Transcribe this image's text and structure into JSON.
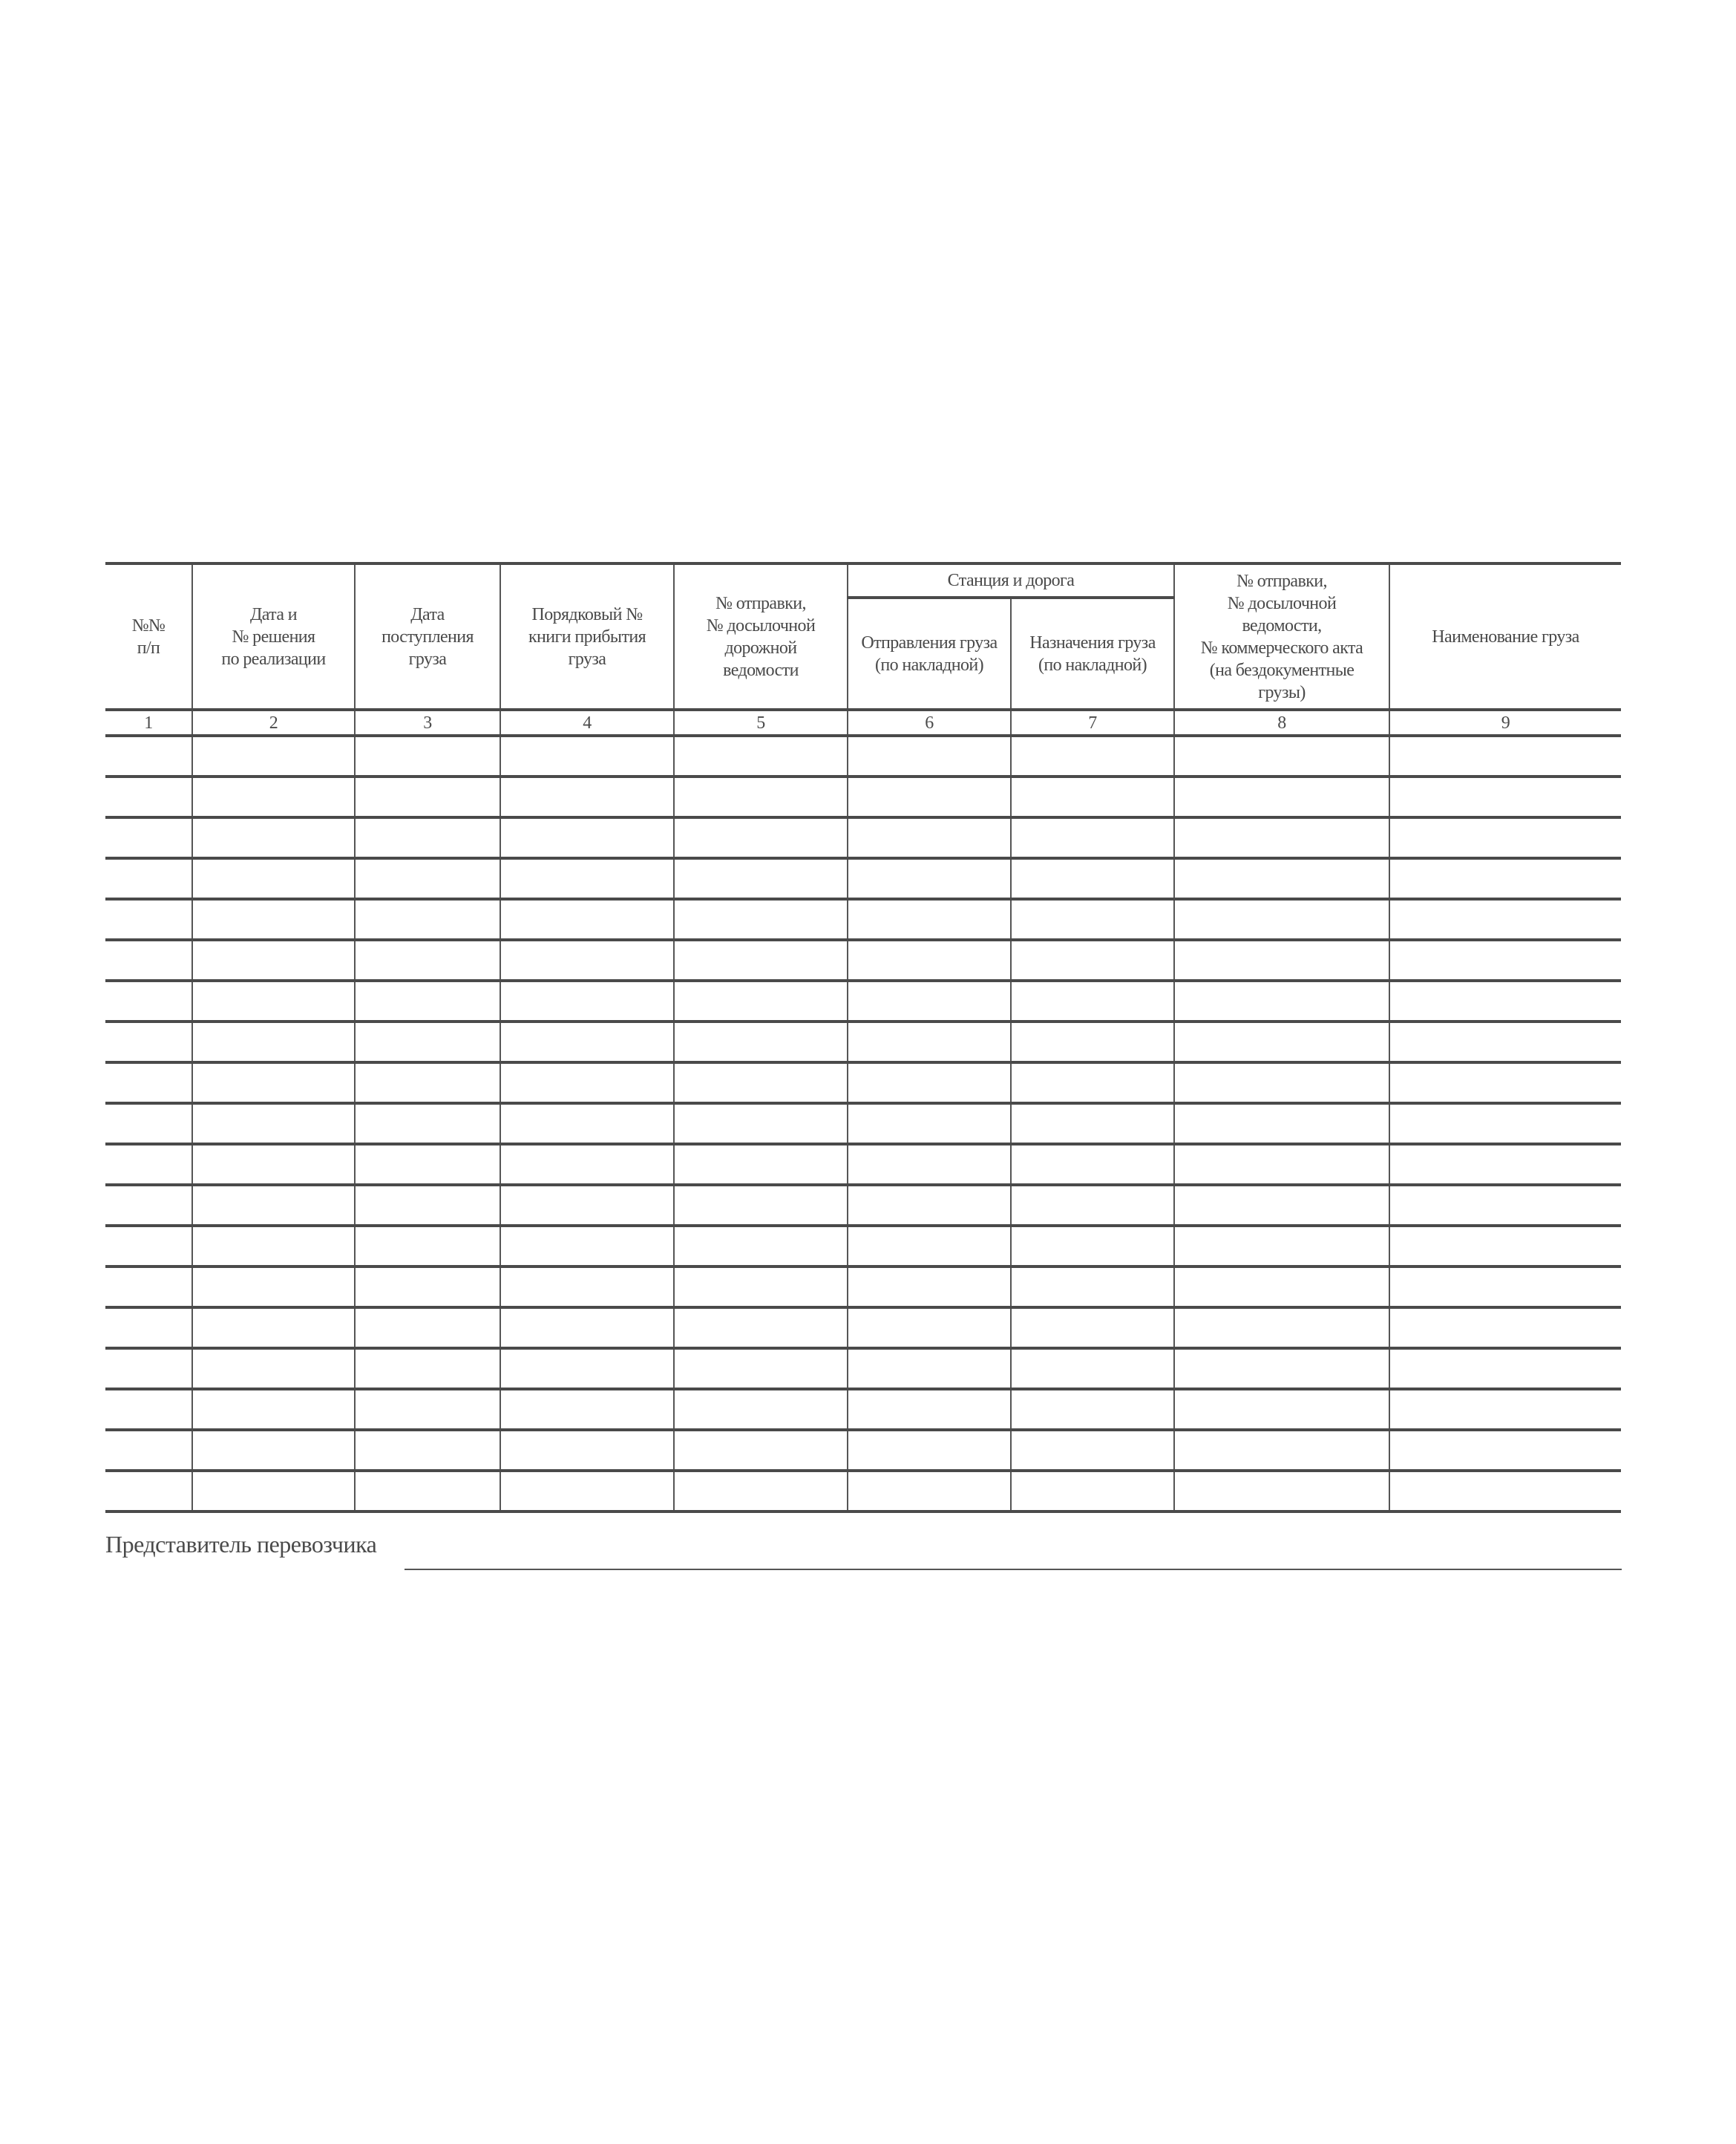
{
  "table": {
    "headers": {
      "col1": "№№\nп/п",
      "col2": "Дата и\n№ решения\nпо реализации",
      "col3": "Дата\nпоступления\nгруза",
      "col4": "Порядковый №\nкниги прибытия\nгруза",
      "col5": "№ отправки,\n№ досылочной\nдорожной\nведомости",
      "group_station": "Станция и дорога",
      "col6": "Отправления груза\n(по накладной)",
      "col7": "Назначения груза\n(по накладной)",
      "col8": "№ отправки,\n№ досылочной\nведомости,\n№ коммерческого акта\n(на бездокументные\nгрузы)",
      "col9": "Наименование груза"
    },
    "column_numbers": [
      "1",
      "2",
      "3",
      "4",
      "5",
      "6",
      "7",
      "8",
      "9"
    ],
    "empty_rows": 19
  },
  "signature": {
    "label": "Представитель перевозчика"
  }
}
